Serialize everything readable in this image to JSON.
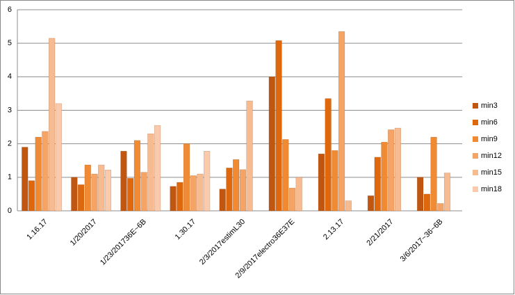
{
  "chart_data": {
    "type": "bar",
    "categories": [
      "1.16.17",
      "1/20/2017",
      "1/23/201736E~6B",
      "1.30.17",
      "2/3/2017estimL30",
      "2/9/2017electro36E37E",
      "2.13.17",
      "2/21/2017",
      "3/6/2017~36~6B"
    ],
    "series": [
      {
        "name": "min3",
        "color": "#c0560f",
        "values": [
          1.9,
          1.0,
          1.78,
          0.73,
          0.65,
          4.0,
          1.7,
          0.45,
          1.0
        ]
      },
      {
        "name": "min6",
        "color": "#e0680c",
        "values": [
          0.9,
          0.78,
          0.97,
          0.85,
          1.28,
          5.08,
          3.35,
          1.6,
          0.5
        ]
      },
      {
        "name": "min9",
        "color": "#f08a33",
        "values": [
          2.2,
          1.37,
          2.1,
          2.0,
          1.53,
          2.13,
          1.8,
          2.05,
          2.2
        ]
      },
      {
        "name": "min12",
        "color": "#f5a465",
        "values": [
          2.37,
          1.1,
          1.15,
          1.05,
          1.23,
          0.68,
          5.35,
          2.42,
          0.22
        ]
      },
      {
        "name": "min15",
        "color": "#f7bb92",
        "values": [
          5.15,
          1.37,
          2.3,
          1.1,
          3.28,
          1.0,
          0.3,
          2.47,
          1.13
        ]
      },
      {
        "name": "min18",
        "color": "#f9cbac",
        "values": [
          3.2,
          1.22,
          2.55,
          1.78,
          null,
          null,
          null,
          null,
          null
        ]
      }
    ],
    "ylim": [
      0,
      6
    ],
    "yticks": [
      0,
      1,
      2,
      3,
      4,
      5,
      6
    ],
    "grid": true,
    "legend": "right"
  }
}
